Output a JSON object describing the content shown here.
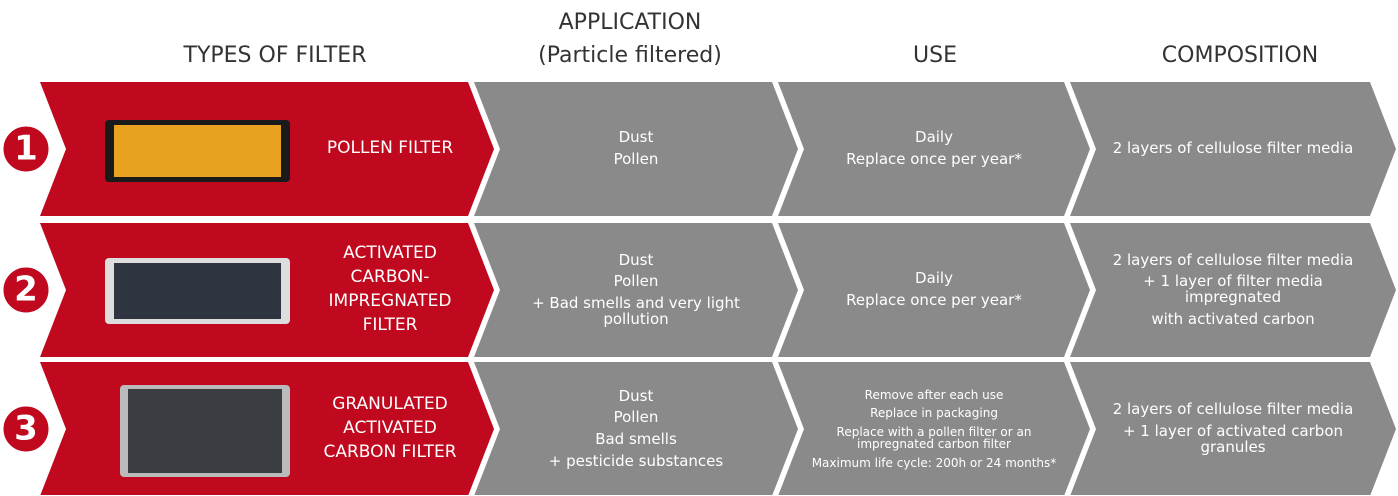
{
  "headers": [
    [
      "TYPES OF FILTER"
    ],
    [
      "APPLICATION",
      "(Particle filtered)"
    ],
    [
      "USE"
    ],
    [
      "COMPOSITION"
    ]
  ],
  "rows": [
    {
      "number": "1",
      "name": [
        "POLLEN FILTER"
      ],
      "application": [
        "Dust",
        "Pollen"
      ],
      "use": [
        "Daily",
        "Replace once per year*"
      ],
      "composition": [
        "2 layers of cellulose filter media"
      ]
    },
    {
      "number": "2",
      "name": [
        "ACTIVATED",
        "CARBON-",
        "IMPREGNATED",
        "FILTER"
      ],
      "application": [
        "Dust",
        "Pollen",
        "+ Bad smells and very light pollution"
      ],
      "use": [
        "Daily",
        "Replace once per year*"
      ],
      "composition": [
        "2 layers of cellulose filter media",
        "+ 1 layer of filter media impregnated",
        "with activated carbon"
      ]
    },
    {
      "number": "3",
      "name": [
        "GRANULATED",
        "ACTIVATED",
        "CARBON FILTER"
      ],
      "application": [
        "Dust",
        "Pollen",
        "Bad smells",
        "+ pesticide substances"
      ],
      "use": [
        "Remove after each use",
        "Replace in packaging",
        "Replace with a pollen filter or an impregnated carbon filter",
        "Maximum life cycle: 200h or 24 months*"
      ],
      "composition": [
        "2 layers of cellulose filter media",
        "+ 1 layer of activated carbon granules"
      ]
    }
  ]
}
